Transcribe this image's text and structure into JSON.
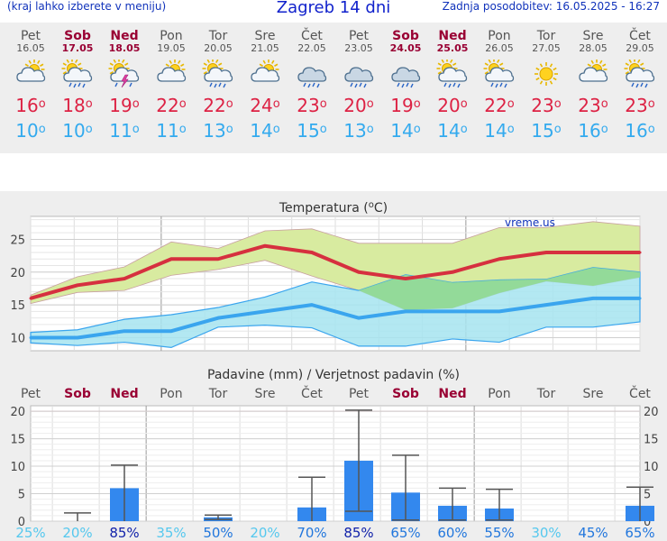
{
  "header": {
    "hint": "(kraj lahko izberete v meniju)",
    "title": "Zagreb 14 dni",
    "updated": "Zadnja posodobitev: 16.05.2025 - 16:27"
  },
  "days": [
    {
      "name": "Pet",
      "date": "16.05",
      "weekend": false,
      "icon": "partly-cloudy-icon",
      "tmax": "16",
      "tmin": "10"
    },
    {
      "name": "Sob",
      "date": "17.05",
      "weekend": true,
      "icon": "sun-cloud-rain-icon",
      "tmax": "18",
      "tmin": "10"
    },
    {
      "name": "Ned",
      "date": "18.05",
      "weekend": true,
      "icon": "sun-cloud-storm-icon",
      "tmax": "19",
      "tmin": "11"
    },
    {
      "name": "Pon",
      "date": "19.05",
      "weekend": false,
      "icon": "partly-cloudy-icon",
      "tmax": "22",
      "tmin": "11"
    },
    {
      "name": "Tor",
      "date": "20.05",
      "weekend": false,
      "icon": "sun-cloud-rain-icon",
      "tmax": "22",
      "tmin": "13"
    },
    {
      "name": "Sre",
      "date": "21.05",
      "weekend": false,
      "icon": "partly-cloudy-icon",
      "tmax": "24",
      "tmin": "14"
    },
    {
      "name": "Čet",
      "date": "22.05",
      "weekend": false,
      "icon": "cloud-rain-icon",
      "tmax": "23",
      "tmin": "15"
    },
    {
      "name": "Pet",
      "date": "23.05",
      "weekend": false,
      "icon": "cloud-rain-icon",
      "tmax": "20",
      "tmin": "13"
    },
    {
      "name": "Sob",
      "date": "24.05",
      "weekend": true,
      "icon": "cloud-rain-icon",
      "tmax": "19",
      "tmin": "14"
    },
    {
      "name": "Ned",
      "date": "25.05",
      "weekend": true,
      "icon": "sun-cloud-rain-icon",
      "tmax": "20",
      "tmin": "14"
    },
    {
      "name": "Pon",
      "date": "26.05",
      "weekend": false,
      "icon": "sun-cloud-rain-icon",
      "tmax": "22",
      "tmin": "14"
    },
    {
      "name": "Tor",
      "date": "27.05",
      "weekend": false,
      "icon": "sun-icon",
      "tmax": "23",
      "tmin": "15"
    },
    {
      "name": "Sre",
      "date": "28.05",
      "weekend": false,
      "icon": "partly-cloudy-icon",
      "tmax": "23",
      "tmin": "16"
    },
    {
      "name": "Čet",
      "date": "29.05",
      "weekend": false,
      "icon": "sun-cloud-rain-icon",
      "tmax": "23",
      "tmin": "16"
    }
  ],
  "colors": {
    "max_line": "#d6303f",
    "max_band": "#d8eba0",
    "min_line": "#3aa5ee",
    "min_band": "#a6e4f0",
    "overlap": "#90d890",
    "precip_bar": "#3388ee",
    "weekday_text": "#555555",
    "weekend_text": "#990033"
  },
  "chart_data": [
    {
      "type": "line",
      "title": "Temperatura (°C)",
      "watermark": "vreme.us",
      "categories": [
        "Pet",
        "Sob",
        "Ned",
        "Pon",
        "Tor",
        "Sre",
        "Čet",
        "Pet",
        "Sob",
        "Ned",
        "Pon",
        "Tor",
        "Sre",
        "Čet"
      ],
      "ylim": [
        8,
        28.5
      ],
      "yticks": [
        10,
        15,
        20,
        25
      ],
      "grid": true,
      "series": [
        {
          "values": [
            16,
            18,
            19,
            22,
            22,
            24,
            23,
            20,
            19,
            20,
            22,
            23,
            23,
            23
          ]
        },
        {
          "values": [
            10,
            10,
            11,
            11,
            13,
            14,
            15,
            13,
            14,
            14,
            14,
            15,
            16,
            16
          ]
        }
      ],
      "max_band_upper": [
        16.5,
        19.3,
        20.8,
        24.6,
        23.6,
        26.3,
        26.6,
        24.4,
        24.4,
        24.4,
        26.8,
        26.8,
        27.7,
        27
      ],
      "max_band_lower": [
        15.2,
        16.9,
        17.2,
        19.5,
        20.4,
        21.8,
        19.4,
        17.2,
        14.2,
        14.5,
        16.8,
        18.6,
        17.9,
        19.2
      ],
      "min_band_upper": [
        10.8,
        11.2,
        12.8,
        13.5,
        14.6,
        16.2,
        18.5,
        17.2,
        19.6,
        18.4,
        18.8,
        18.9,
        20.7,
        20
      ],
      "min_band_lower": [
        9.2,
        8.8,
        9.3,
        8.5,
        11.6,
        11.9,
        11.5,
        8.7,
        8.7,
        9.8,
        9.3,
        11.6,
        11.6,
        12.4
      ]
    },
    {
      "type": "bar",
      "title": "Padavine (mm) / Verjetnost padavin (%)",
      "categories": [
        "Pet",
        "Sob",
        "Ned",
        "Pon",
        "Tor",
        "Sre",
        "Čet",
        "Pet",
        "Sob",
        "Ned",
        "Pon",
        "Tor",
        "Sre",
        "Čet"
      ],
      "ylim": [
        0,
        21
      ],
      "yticks": [
        0,
        5,
        10,
        15,
        20
      ],
      "values": [
        0,
        0,
        6,
        0,
        0.7,
        0,
        2.5,
        11,
        5.2,
        2.8,
        2.3,
        0,
        0,
        2.8
      ],
      "err_low": [
        0,
        0,
        0,
        0,
        0.3,
        0,
        0,
        1.8,
        0.2,
        0.2,
        0.2,
        0,
        0,
        0
      ],
      "err_high": [
        0,
        1.5,
        10.2,
        0,
        1.1,
        0,
        8,
        20.2,
        12,
        6,
        5.8,
        0,
        0,
        6.2
      ],
      "probability": [
        "25%",
        "20%",
        "85%",
        "35%",
        "50%",
        "20%",
        "70%",
        "85%",
        "65%",
        "60%",
        "55%",
        "30%",
        "45%",
        "65%"
      ],
      "probability_values": [
        25,
        20,
        85,
        35,
        50,
        20,
        70,
        85,
        65,
        60,
        55,
        30,
        45,
        65
      ]
    }
  ]
}
